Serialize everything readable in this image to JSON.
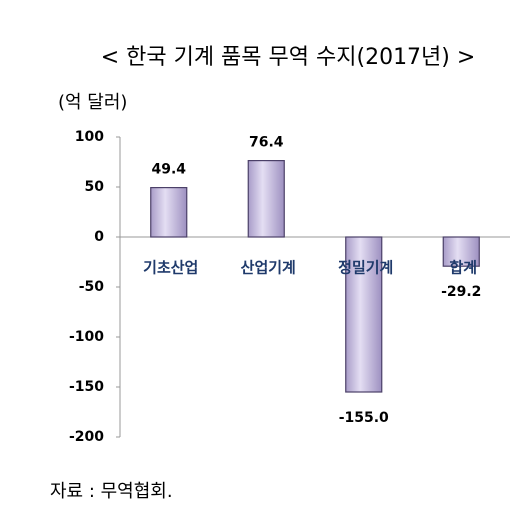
{
  "chart_data": {
    "type": "bar",
    "title": "< 한국 기계 품목 무역 수지(2017년) >",
    "unit": "(억 달러)",
    "categories": [
      "기초산업",
      "산업기계",
      "정밀기계",
      "합계"
    ],
    "values": [
      49.4,
      76.4,
      -155.0,
      -29.2
    ],
    "value_labels": [
      "49.4",
      "76.4",
      "-155.0",
      "-29.2"
    ],
    "color": "#cbc3e3",
    "ylim": [
      -200,
      100
    ],
    "yticks": [
      -200,
      -150,
      -100,
      -50,
      0,
      50,
      100
    ],
    "grid": false,
    "source": "자료 : 무역협회."
  }
}
